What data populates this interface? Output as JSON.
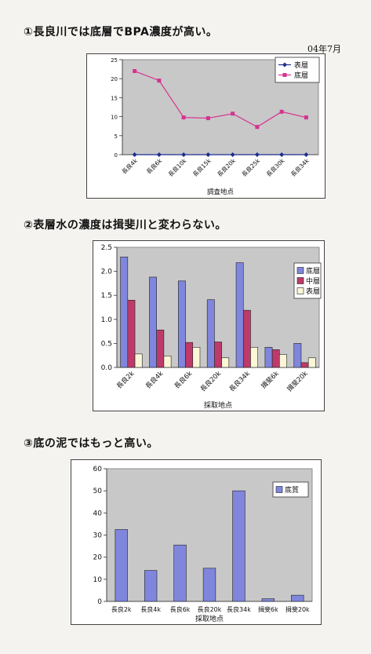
{
  "headings": {
    "h1": "①長良川では底層でBPA濃度が高い。",
    "h2": "②表層水の濃度は揖斐川と変わらない。",
    "h3": "③底の泥ではもっと高い。"
  },
  "date": "04年7月",
  "chart_data": [
    {
      "type": "line",
      "categories": [
        "長良4k",
        "長良6k",
        "長良10k",
        "長良15k",
        "長良20k",
        "長良25k",
        "長良30k",
        "長良34k"
      ],
      "series": [
        {
          "name": "表層",
          "color": "#1f2f8f",
          "marker": "diamond",
          "values": [
            0,
            0,
            0,
            0,
            0,
            0,
            0,
            0
          ]
        },
        {
          "name": "底層",
          "color": "#d6338f",
          "marker": "square",
          "values": [
            22,
            19.5,
            9.8,
            9.6,
            10.8,
            7.3,
            11.3,
            9.8
          ]
        }
      ],
      "title": "",
      "xlabel": "調査地点",
      "ylabel": "",
      "ylim": [
        0,
        25
      ],
      "yticks": [
        0,
        5,
        10,
        15,
        20,
        25
      ],
      "grid": false,
      "legend": "top-right",
      "plot_bg": "#c8c8c8"
    },
    {
      "type": "bar",
      "categories": [
        "長良2k",
        "長良4k",
        "長良6k",
        "長良20k",
        "長良34k",
        "揖斐6k",
        "揖斐20k"
      ],
      "series": [
        {
          "name": "底層",
          "color": "#7f86dc",
          "values": [
            2.3,
            1.88,
            1.8,
            1.41,
            2.18,
            0.42,
            0.5
          ]
        },
        {
          "name": "中層",
          "color": "#bd3a6a",
          "values": [
            1.4,
            0.78,
            0.52,
            0.53,
            1.19,
            0.37,
            0.1
          ]
        },
        {
          "name": "表層",
          "color": "#fbf6d6",
          "values": [
            0.28,
            0.24,
            0.42,
            0.2,
            0.42,
            0.27,
            0.2
          ]
        }
      ],
      "title": "",
      "xlabel": "採取地点",
      "ylabel": "",
      "ylim": [
        0,
        2.5
      ],
      "yticks": [
        0,
        0.5,
        1,
        1.5,
        2,
        2.5
      ],
      "ytick_labels": [
        "0.0",
        "0.5",
        "1.0",
        "1.5",
        "2.0",
        "2.5"
      ],
      "grid": false,
      "legend": "right",
      "plot_bg": "#c8c8c8"
    },
    {
      "type": "bar",
      "categories": [
        "長良2k",
        "長良4k",
        "長良6k",
        "長良20k",
        "長良34k",
        "揖斐6k",
        "揖斐20k"
      ],
      "series": [
        {
          "name": "底質",
          "color": "#7f86dc",
          "values": [
            32.5,
            14,
            25.5,
            15,
            50,
            1.2,
            2.8
          ]
        }
      ],
      "title": "",
      "xlabel": "採取地点",
      "ylabel": "",
      "ylim": [
        0,
        60
      ],
      "yticks": [
        0,
        10,
        20,
        30,
        40,
        50,
        60
      ],
      "grid": false,
      "legend": "top-right",
      "plot_bg": "#c8c8c8"
    }
  ]
}
